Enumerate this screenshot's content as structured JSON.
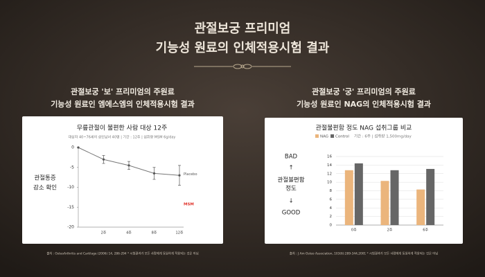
{
  "header": {
    "title_lines": [
      "관절보궁 프리미엄",
      "기능성 원료의 인체적용시험 결과"
    ]
  },
  "panels": [
    {
      "heading_lines": [
        "관절보궁 '보' 프리미엄의 주원료",
        "기능성 원료인 엠에스엠의 인체적용시험 결과"
      ],
      "side_label_lines": [
        "관절통증",
        "감소 확인"
      ],
      "footnote": "출처 : OsteoArthritis and Cartilage (2006) 14, 286-294 * 시험결과가 모든 사람에게 동일하게 적용되는 것은 아님"
    },
    {
      "heading_lines": [
        "관절보궁 '궁' 프리미엄의 주원료",
        "기능성 원료인 NAG의 인체적용시험 결과"
      ],
      "side_label_lines": [
        "BAD",
        "↑",
        "관절불편함",
        "정도",
        "↓",
        "GOOD"
      ],
      "footnote": "출처 : J Am Osteo Association, 103(6):289-344,2001 * 시험결과가 모든 사람에게 동일하게 적용되는 것은 아님"
    }
  ],
  "chart_data": [
    {
      "type": "line",
      "title": "무릎관절이 불편한 사람 대상 12주",
      "subtitle": "대상자 40~76세의 성인남녀 40명 | 기간 : 12주 | 섭취량 MSM 6g/day",
      "categories": [
        null,
        "2주",
        "4주",
        "8주",
        "12주"
      ],
      "values": [
        0,
        -3,
        -4.5,
        -6.5,
        -7
      ],
      "errors": [
        null,
        1,
        1,
        1.5,
        2.5
      ],
      "color": "#777777",
      "ylim": [
        -20,
        0
      ],
      "yticks": [
        0,
        -5,
        -10,
        -15,
        -20
      ],
      "annotations": [
        {
          "text": "Placebo",
          "color": "#555555"
        },
        {
          "text": "MSM",
          "color": "#e0322a"
        }
      ]
    },
    {
      "type": "bar",
      "title": "관절불편함 정도 NAG 섭취그룹 비교",
      "subtitle": "기간 : 6주 | 섭취량 1,500mg/day",
      "categories": [
        "0주",
        "2주",
        "6주"
      ],
      "series": [
        {
          "name": "NAG",
          "color": "#ebb57c",
          "values": [
            12.8,
            10.3,
            8.3
          ]
        },
        {
          "name": "Control",
          "color": "#666666",
          "values": [
            14.4,
            12.8,
            13.1
          ]
        }
      ],
      "ylim": [
        0,
        16
      ],
      "yticks": [
        0,
        2,
        4,
        6,
        8,
        10,
        12,
        14,
        16
      ],
      "grid": true
    }
  ]
}
